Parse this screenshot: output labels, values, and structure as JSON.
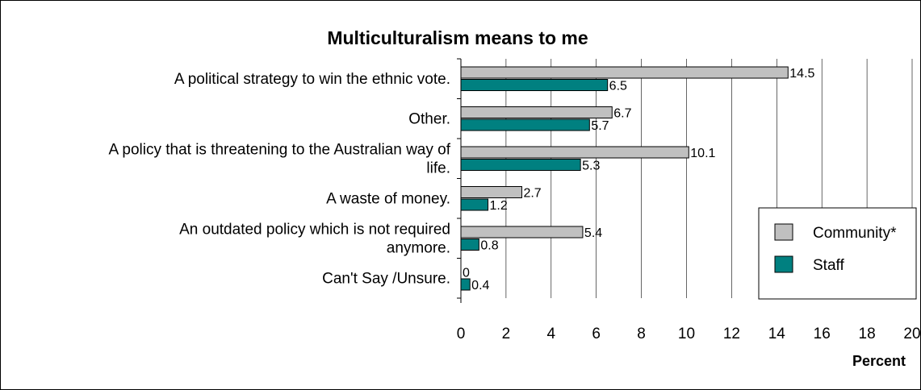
{
  "chart_data": {
    "type": "bar",
    "orientation": "horizontal",
    "title": "Multiculturalism means to me",
    "xlabel": "Percent",
    "xlim": [
      0,
      20
    ],
    "xticks": [
      0,
      2,
      4,
      6,
      8,
      10,
      12,
      14,
      16,
      18,
      20
    ],
    "grid": "vertical",
    "legend_position": "right",
    "categories": [
      [
        "A political strategy to win the ethnic vote."
      ],
      [
        "Other."
      ],
      [
        "A policy that is threatening to the Australian way of",
        "life."
      ],
      [
        "A waste of money."
      ],
      [
        "An outdated policy which is not required",
        "anymore."
      ],
      [
        "Can't Say /Unsure."
      ]
    ],
    "series": [
      {
        "name": "Community*",
        "color": "#c0c0c0",
        "values": [
          14.5,
          6.7,
          10.1,
          2.7,
          5.4,
          0
        ],
        "labels": [
          "14.5",
          "6.7",
          "10.1",
          "2.7",
          "5.4",
          "0"
        ]
      },
      {
        "name": "Staff",
        "color": "#008080",
        "values": [
          6.5,
          5.7,
          5.3,
          1.2,
          0.8,
          0.4
        ],
        "labels": [
          "6.5",
          "5.7",
          "5.3",
          "1.2",
          "0.8",
          "0.4"
        ]
      }
    ]
  }
}
